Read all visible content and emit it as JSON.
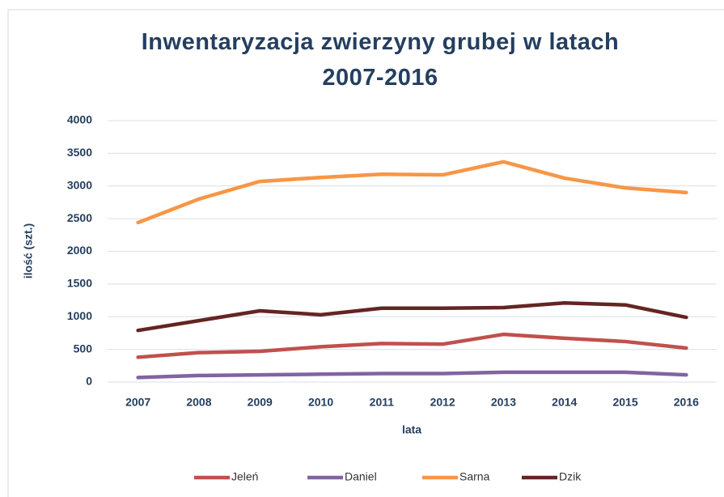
{
  "chart_data": {
    "type": "line",
    "title": "Inwentaryzacja zwierzyny grubej w latach 2007-2016",
    "xlabel": "lata",
    "ylabel": "ilość (szt.)",
    "categories": [
      "2007",
      "2008",
      "2009",
      "2010",
      "2011",
      "2012",
      "2013",
      "2014",
      "2015",
      "2016"
    ],
    "series": [
      {
        "name": "Jeleń",
        "color": "#c0504d",
        "values": [
          380,
          450,
          470,
          540,
          590,
          580,
          730,
          670,
          620,
          520
        ]
      },
      {
        "name": "Daniel",
        "color": "#8064a2",
        "values": [
          70,
          100,
          110,
          120,
          130,
          130,
          150,
          150,
          150,
          110
        ]
      },
      {
        "name": "Sarna",
        "color": "#f79646",
        "values": [
          2440,
          2800,
          3070,
          3130,
          3180,
          3170,
          3370,
          3120,
          2970,
          2900
        ]
      },
      {
        "name": "Dzik",
        "color": "#632523",
        "values": [
          790,
          940,
          1090,
          1030,
          1130,
          1130,
          1140,
          1210,
          1180,
          990
        ]
      }
    ],
    "ylim": [
      0,
      4000
    ],
    "yticks": [
      0,
      500,
      1000,
      1500,
      2000,
      2500,
      3000,
      3500,
      4000
    ],
    "grid": true,
    "legend": "bottom"
  }
}
